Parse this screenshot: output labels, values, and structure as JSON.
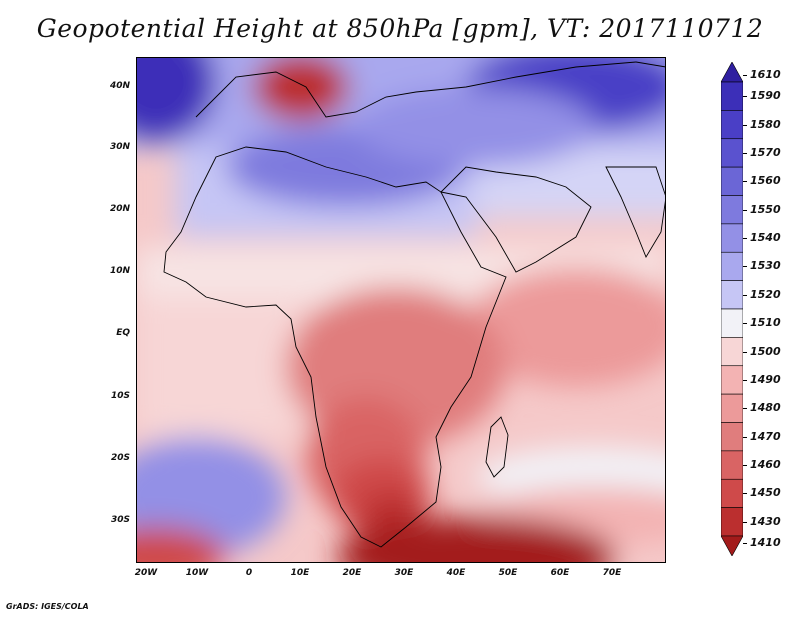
{
  "title": "Geopotential Height at 850hPa [gpm], VT: 2017110712",
  "credit": "GrADS: IGES/COLA",
  "map": {
    "region": "Africa and surroundings",
    "variable": "Geopotential Height",
    "level": "850hPa",
    "units": "gpm",
    "valid_time": "2017110712",
    "lat_labels": [
      "40N",
      "30N",
      "20N",
      "10N",
      "EQ",
      "10S",
      "20S",
      "30S"
    ],
    "lon_labels": [
      "20W",
      "10W",
      "0",
      "10E",
      "20E",
      "30E",
      "40E",
      "50E",
      "60E",
      "70E"
    ]
  },
  "colorbar": {
    "labels": [
      "1610",
      "1590",
      "1580",
      "1570",
      "1560",
      "1550",
      "1540",
      "1530",
      "1520",
      "1510",
      "1500",
      "1490",
      "1480",
      "1470",
      "1460",
      "1450",
      "1430",
      "1410"
    ],
    "colors": [
      "#2f1fa0",
      "#3c2fb8",
      "#4a3fc6",
      "#5a52cf",
      "#6b66d6",
      "#7e7ade",
      "#9390e6",
      "#a9a8ee",
      "#c6c6f5",
      "#f2f2f7",
      "#f7d6d6",
      "#f3b3b3",
      "#ec9a9a",
      "#e07d7d",
      "#d96464",
      "#cf4a4a",
      "#bb2f2f",
      "#a31b1b"
    ]
  }
}
